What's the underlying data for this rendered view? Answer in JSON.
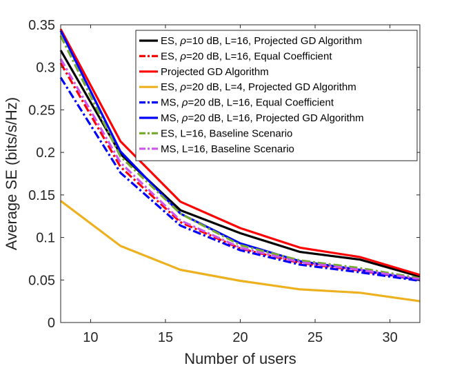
{
  "chart_data": {
    "type": "line",
    "title": "",
    "xlabel": "Number of users",
    "ylabel": "Average SE (bits/s/Hz)",
    "xlim": [
      8,
      32
    ],
    "ylim": [
      0,
      0.35
    ],
    "xticks": [
      10,
      15,
      20,
      25,
      30
    ],
    "xtick_labels": [
      "10",
      "15",
      "20",
      "25",
      "30"
    ],
    "yticks": [
      0,
      0.05,
      0.1,
      0.15,
      0.2,
      0.25,
      0.3,
      0.35
    ],
    "ytick_labels": [
      "0",
      "0.05",
      "0.1",
      "0.15",
      "0.2",
      "0.25",
      "0.3",
      "0.35"
    ],
    "grid": false,
    "legend_position": "top-right",
    "x": [
      8,
      12,
      16,
      20,
      24,
      28,
      32
    ],
    "series": [
      {
        "name": "ES, ρ=10 dB, L=16, Projected GD Algorithm",
        "legend": {
          "pre": "ES, ",
          "greek": "ρ",
          "post": "=10 dB, L=16, Projected GD Algorithm"
        },
        "color": "#000000",
        "dash": "solid",
        "values": [
          0.32,
          0.198,
          0.132,
          0.105,
          0.083,
          0.074,
          0.054
        ]
      },
      {
        "name": "ES, ρ=20 dB, L=16, Equal Coefficient",
        "legend": {
          "pre": "ES, ",
          "greek": "ρ",
          "post": "=20 dB, L=16, Equal Coefficient"
        },
        "color": "#ff0000",
        "dash": "dashdot",
        "values": [
          0.305,
          0.183,
          0.118,
          0.087,
          0.07,
          0.061,
          0.05
        ]
      },
      {
        "name": "Projected GD Algorithm",
        "legend": {
          "pre": "Projected GD Algorithm",
          "greek": "",
          "post": ""
        },
        "color": "#ff0000",
        "dash": "solid",
        "values": [
          0.345,
          0.213,
          0.142,
          0.111,
          0.088,
          0.077,
          0.056
        ]
      },
      {
        "name": "ES, ρ=20 dB, L=4, Projected GD Algorithm",
        "legend": {
          "pre": "ES, ",
          "greek": "ρ",
          "post": "=20 dB, L=4, Projected GD Algorithm"
        },
        "color": "#edb120",
        "dash": "solid",
        "values": [
          0.143,
          0.09,
          0.062,
          0.049,
          0.039,
          0.035,
          0.025
        ]
      },
      {
        "name": "MS, ρ=20 dB, L=16, Equal Coefficient",
        "legend": {
          "pre": "MS, ",
          "greek": "ρ",
          "post": "=20 dB, L=16, Equal Coefficient"
        },
        "color": "#0000ff",
        "dash": "dashdot",
        "values": [
          0.288,
          0.176,
          0.114,
          0.085,
          0.068,
          0.059,
          0.049
        ]
      },
      {
        "name": "MS, ρ=20 dB, L=16, Projected GD Algorithm",
        "legend": {
          "pre": "MS, ",
          "greek": "ρ",
          "post": "=20 dB, L=16, Projected GD Algorithm"
        },
        "color": "#0000ff",
        "dash": "solid",
        "values": [
          0.343,
          0.201,
          0.128,
          0.093,
          0.072,
          0.062,
          0.05
        ]
      },
      {
        "name": "ES, L=16, Baseline Scenario",
        "legend": {
          "pre": "ES, L=16, Baseline Scenario",
          "greek": "",
          "post": ""
        },
        "color": "#77ac30",
        "dash": "dashdot",
        "values": [
          0.337,
          0.195,
          0.128,
          0.091,
          0.073,
          0.064,
          0.052
        ]
      },
      {
        "name": "MS, L=16, Baseline Scenario",
        "legend": {
          "pre": "MS, L=16, Baseline Scenario",
          "greek": "",
          "post": ""
        },
        "color": "#cc55ee",
        "dash": "dashdot",
        "values": [
          0.31,
          0.188,
          0.12,
          0.088,
          0.071,
          0.062,
          0.051
        ]
      }
    ]
  }
}
